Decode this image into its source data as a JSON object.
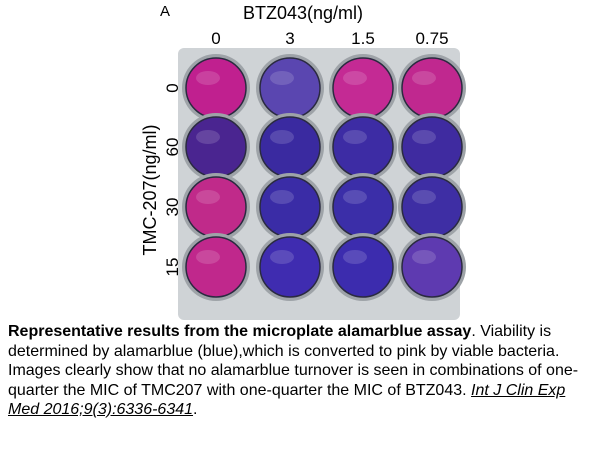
{
  "figure": {
    "panel_label": "A",
    "column_title": "BTZ043(ng/ml)",
    "columns": [
      "0",
      "3",
      "1.5",
      "0.75"
    ],
    "row_title": "TMC-207(ng/ml)",
    "rows": [
      "0",
      "60",
      "30",
      "15"
    ],
    "well_colors": [
      [
        "#c0208f",
        "#5a46b0",
        "#c42a94",
        "#c0288f"
      ],
      [
        "#4a2590",
        "#3a2aa0",
        "#3d2ca4",
        "#3f2ba0"
      ],
      [
        "#c02a8a",
        "#3a2ca6",
        "#3b2ea8",
        "#3e2ea4"
      ],
      [
        "#c0288c",
        "#3f2cb0",
        "#3c2cae",
        "#5e3ab0"
      ]
    ]
  },
  "caption": {
    "title": "Representative results from the microplate alamarblue assay",
    "title_end": ".",
    "body": "Viability is determined by alamarblue (blue),which is converted to pink by viable bacteria. Images clearly show that no alamarblue turnover is seen in combinations of one-quarter the MIC of TMC207 with one-quarter the MIC of BTZ043.",
    "citation": "Int J Clin Exp Med 2016;9(3):6336-6341",
    "end": "."
  }
}
